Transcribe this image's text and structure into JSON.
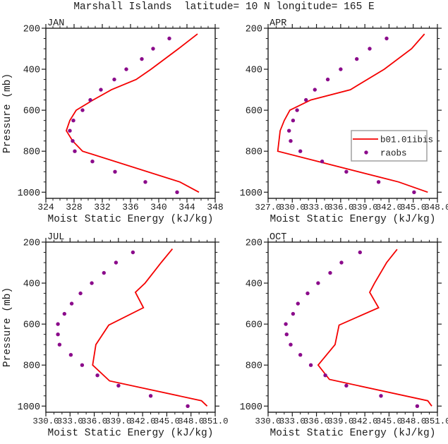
{
  "title": "Marshall Islands  latitude= 10 N longitude= 165 E",
  "xlabel": "Moist Static Energy (kJ/kg)",
  "ylabel": "Pressure (mb)",
  "legend": {
    "entries": [
      {
        "label": "b01.01ibis",
        "marker": "line"
      },
      {
        "label": "raobs",
        "marker": "dot"
      }
    ]
  },
  "colors": {
    "model_line": "#f40000",
    "obs_dot": "#8b0b8b",
    "axis": "#1c1c1c",
    "legend_border": "#a0a0a0",
    "background": "#ffffff"
  },
  "chart_data": [
    {
      "type": "line",
      "panel": "JAN",
      "title": "JAN",
      "xlabel": "Moist Static Energy (kJ/kg)",
      "ylabel": "Pressure (mb)",
      "xlim": [
        324,
        348
      ],
      "ylim": [
        200,
        1030
      ],
      "xticks": [
        324,
        328,
        332,
        336,
        340,
        344,
        348
      ],
      "xtick_labels": [
        "324",
        "328",
        "332",
        "336",
        "340",
        "344",
        "348"
      ],
      "x_minor_step": 1,
      "yticks": [
        200,
        400,
        600,
        800,
        1000
      ],
      "ytick_labels": [
        "200",
        "400",
        "600",
        "800",
        "1000"
      ],
      "y_minor_step": 50,
      "grid": false,
      "series": [
        {
          "name": "b01.01ibis",
          "style": "line",
          "pressure": [
            228,
            300,
            400,
            450,
            500,
            550,
            600,
            650,
            700,
            750,
            800,
            950,
            1000
          ],
          "mse": [
            345.5,
            342.8,
            338.9,
            336.8,
            333.3,
            330.7,
            328.3,
            327.4,
            326.9,
            327.8,
            329.2,
            343.0,
            345.7
          ]
        },
        {
          "name": "raobs",
          "style": "scatter",
          "pressure": [
            250,
            300,
            350,
            400,
            450,
            500,
            550,
            600,
            650,
            700,
            750,
            800,
            850,
            900,
            950,
            1000
          ],
          "mse": [
            341.5,
            339.2,
            337.6,
            335.4,
            333.7,
            331.8,
            330.3,
            329.2,
            327.9,
            327.4,
            327.8,
            328.1,
            330.6,
            333.8,
            338.1,
            342.6
          ]
        }
      ]
    },
    {
      "type": "line",
      "panel": "APR",
      "title": "APR",
      "xlabel": "Moist Static Energy (kJ/kg)",
      "ylabel": "Pressure (mb)",
      "xlim": [
        327,
        348
      ],
      "ylim": [
        200,
        1030
      ],
      "xticks": [
        327,
        330,
        333,
        336,
        339,
        342,
        345,
        348
      ],
      "xtick_labels": [
        "327.0",
        "330.0",
        "333.0",
        "336.0",
        "339.0",
        "342.0",
        "345.0",
        "348.0"
      ],
      "x_minor_step": 1,
      "yticks": [
        200,
        400,
        600,
        800,
        1000
      ],
      "ytick_labels": [
        "200",
        "400",
        "600",
        "800",
        "1000"
      ],
      "y_minor_step": 50,
      "grid": false,
      "series": [
        {
          "name": "b01.01ibis",
          "style": "line",
          "pressure": [
            228,
            300,
            400,
            500,
            550,
            600,
            650,
            700,
            800,
            950,
            1000
          ],
          "mse": [
            346.4,
            344.8,
            341.4,
            337.2,
            332.3,
            329.7,
            329.0,
            328.5,
            328.2,
            343.2,
            346.8
          ]
        },
        {
          "name": "raobs",
          "style": "scatter",
          "pressure": [
            250,
            300,
            350,
            400,
            450,
            500,
            550,
            600,
            650,
            700,
            750,
            800,
            850,
            900,
            950,
            1000
          ],
          "mse": [
            341.7,
            339.6,
            338.0,
            336.0,
            334.4,
            332.8,
            331.7,
            330.6,
            330.1,
            329.6,
            329.8,
            331.0,
            333.7,
            336.7,
            340.7,
            345.1
          ]
        }
      ]
    },
    {
      "type": "line",
      "panel": "JUL",
      "title": "JUL",
      "xlabel": "Moist Static Energy (kJ/kg)",
      "ylabel": "Pressure (mb)",
      "xlim": [
        330,
        351
      ],
      "ylim": [
        200,
        1030
      ],
      "xticks": [
        330,
        333,
        336,
        339,
        342,
        345,
        348,
        351
      ],
      "xtick_labels": [
        "330.0",
        "333.0",
        "336.0",
        "339.0",
        "342.0",
        "345.0",
        "348.0",
        "351.0"
      ],
      "x_minor_step": 1,
      "yticks": [
        200,
        400,
        600,
        800,
        1000
      ],
      "ytick_labels": [
        "200",
        "400",
        "600",
        "800",
        "1000"
      ],
      "y_minor_step": 50,
      "grid": false,
      "series": [
        {
          "name": "b01.01ibis",
          "style": "line",
          "pressure": [
            233,
            300,
            400,
            445,
            520,
            605,
            700,
            800,
            877,
            974,
            1000
          ],
          "mse": [
            345.7,
            344.3,
            342.3,
            341.1,
            342.1,
            337.8,
            336.2,
            335.8,
            337.9,
            349.3,
            350.0
          ]
        },
        {
          "name": "raobs",
          "style": "scatter",
          "pressure": [
            250,
            300,
            350,
            400,
            450,
            500,
            550,
            600,
            650,
            700,
            750,
            800,
            850,
            900,
            950,
            1000
          ],
          "mse": [
            340.8,
            338.7,
            337.2,
            335.7,
            334.3,
            333.2,
            332.3,
            331.5,
            331.5,
            331.7,
            333.1,
            334.5,
            336.4,
            339.0,
            343.0,
            347.6
          ]
        }
      ]
    },
    {
      "type": "line",
      "panel": "OCT",
      "title": "OCT",
      "xlabel": "Moist Static Energy (kJ/kg)",
      "ylabel": "Pressure (mb)",
      "xlim": [
        330,
        351
      ],
      "ylim": [
        200,
        1030
      ],
      "xticks": [
        330,
        333,
        336,
        339,
        342,
        345,
        348,
        351
      ],
      "xtick_labels": [
        "330.0",
        "333.0",
        "336.0",
        "339.0",
        "342.0",
        "345.0",
        "348.0",
        "351.0"
      ],
      "x_minor_step": 1,
      "yticks": [
        200,
        400,
        600,
        800,
        1000
      ],
      "ytick_labels": [
        "200",
        "400",
        "600",
        "800",
        "1000"
      ],
      "y_minor_step": 50,
      "grid": false,
      "series": [
        {
          "name": "b01.01ibis",
          "style": "line",
          "pressure": [
            235,
            300,
            400,
            445,
            520,
            605,
            700,
            800,
            870,
            974,
            1000
          ],
          "mse": [
            346.0,
            344.7,
            343.2,
            342.6,
            343.7,
            338.8,
            338.3,
            336.2,
            337.6,
            349.8,
            350.3
          ]
        },
        {
          "name": "raobs",
          "style": "scatter",
          "pressure": [
            250,
            300,
            350,
            400,
            450,
            500,
            550,
            600,
            650,
            700,
            750,
            800,
            850,
            900,
            950,
            1000
          ],
          "mse": [
            341.4,
            339.1,
            337.7,
            336.2,
            334.9,
            333.7,
            333.1,
            332.2,
            332.3,
            332.8,
            334.0,
            335.3,
            337.1,
            339.7,
            344.0,
            348.5
          ]
        }
      ]
    }
  ]
}
